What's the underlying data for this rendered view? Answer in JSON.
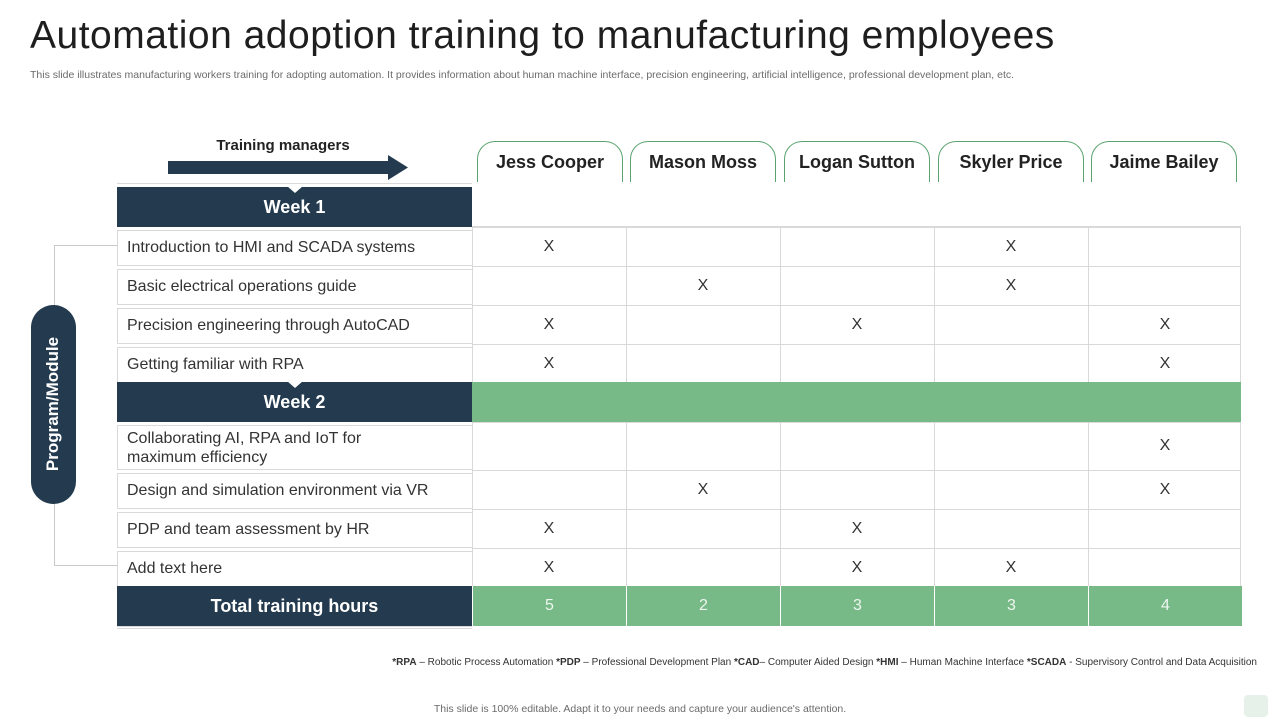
{
  "title": "Automation adoption training to manufacturing employees",
  "subtitle": "This slide illustrates manufacturing workers training for adopting automation. It provides information about human machine interface, precision engineering, artificial intelligence, professional development plan, etc.",
  "managers_label": "Training managers",
  "managers": [
    "Jess Cooper",
    "Mason Moss",
    "Logan Sutton",
    "Skyler Price",
    "Jaime Bailey"
  ],
  "side_label": "Program/Module",
  "weeks": [
    {
      "label": "Week 1",
      "modules": [
        {
          "name": "Introduction  to HMI and SCADA systems",
          "marks": [
            "X",
            "",
            "",
            "X",
            ""
          ]
        },
        {
          "name": "Basic electrical operations guide",
          "marks": [
            "",
            "X",
            "",
            "X",
            ""
          ]
        },
        {
          "name": "Precision engineering through AutoCAD",
          "marks": [
            "X",
            "",
            "X",
            "",
            "X"
          ]
        },
        {
          "name": "Getting familiar with RPA",
          "marks": [
            "X",
            "",
            "",
            "",
            "X"
          ]
        }
      ]
    },
    {
      "label": "Week 2",
      "modules": [
        {
          "name": "Collaborating AI, RPA and IoT for maximum  efficiency",
          "marks": [
            "",
            "",
            "",
            "",
            "X"
          ]
        },
        {
          "name": "Design and simulation environment  via VR",
          "marks": [
            "",
            "X",
            "",
            "",
            "X"
          ]
        },
        {
          "name": "PDP and team assessment by HR",
          "marks": [
            "X",
            "",
            "X",
            "",
            ""
          ]
        },
        {
          "name": "Add text here",
          "marks": [
            "X",
            "",
            "X",
            "X",
            ""
          ]
        }
      ]
    }
  ],
  "total_label": "Total training hours",
  "totals": [
    "5",
    "2",
    "3",
    "3",
    "4"
  ],
  "footnote": {
    "items": [
      {
        "abbr": "*RPA",
        "text": " – Robotic Process Automation "
      },
      {
        "abbr": "*PDP",
        "text": " – Professional Development Plan  "
      },
      {
        "abbr": "*CAD",
        "text": "– Computer Aided Design "
      },
      {
        "abbr": "*HMI",
        "text": " – Human Machine Interface "
      },
      {
        "abbr": "*SCADA",
        "text": " - Supervisory Control and Data Acquisition"
      }
    ]
  },
  "footer": "This slide is 100% editable. Adapt it to your needs and capture your audience's attention.",
  "colors": {
    "navy": "#243b4f",
    "green": "#77ba87",
    "green_border": "#5aa36e"
  }
}
